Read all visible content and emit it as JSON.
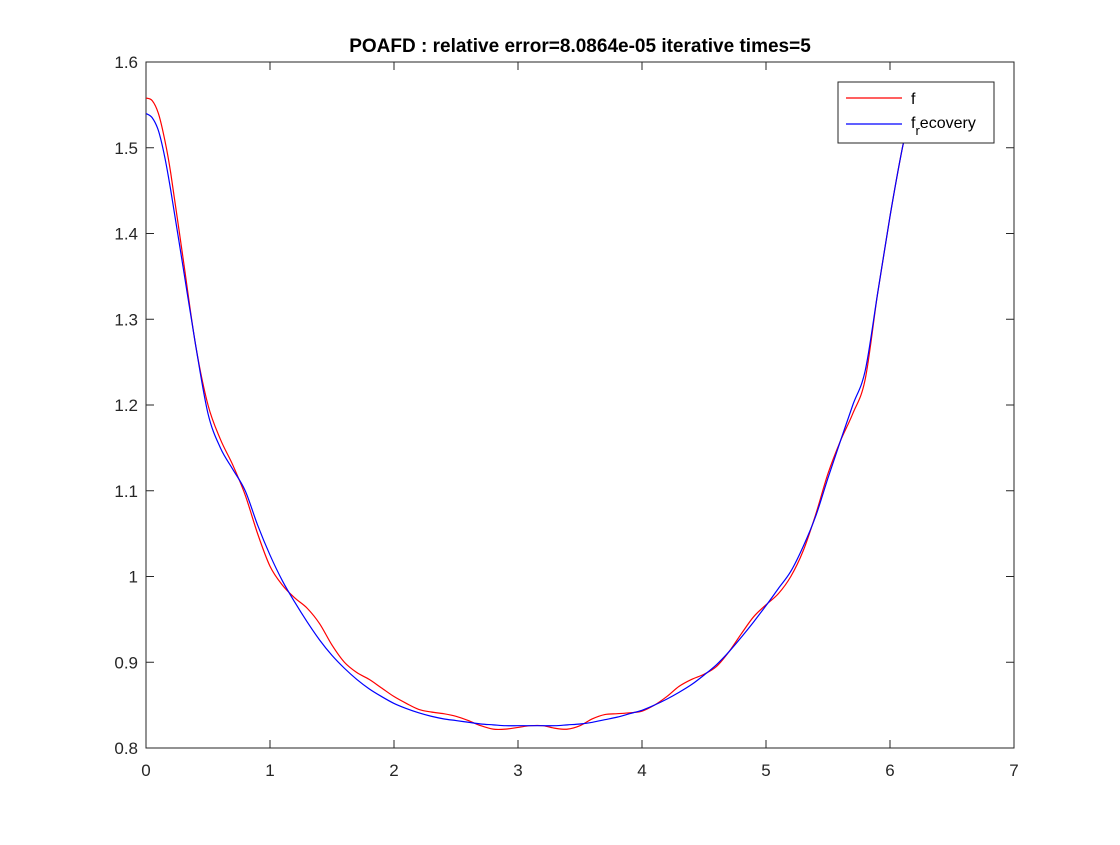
{
  "chart_data": {
    "type": "line",
    "title": "POAFD : relative error=8.0864e-05  iterative times=5",
    "xlabel": "",
    "ylabel": "",
    "xlim": [
      0,
      7
    ],
    "ylim": [
      0.8,
      1.6
    ],
    "xticks": [
      0,
      1,
      2,
      3,
      4,
      5,
      6,
      7
    ],
    "yticks": [
      0.8,
      0.9,
      1.0,
      1.1,
      1.2,
      1.3,
      1.4,
      1.5,
      1.6
    ],
    "xtick_labels": [
      "0",
      "1",
      "2",
      "3",
      "4",
      "5",
      "6",
      "7"
    ],
    "ytick_labels": [
      "0.8",
      "0.9",
      "1",
      "1.1",
      "1.2",
      "1.3",
      "1.4",
      "1.5",
      "1.6"
    ],
    "grid": false,
    "legend_position": "top-right",
    "series": [
      {
        "name": "f",
        "color": "#ff0000",
        "x": [
          0,
          0.05,
          0.1,
          0.15,
          0.2,
          0.3,
          0.4,
          0.5,
          0.6,
          0.7,
          0.8,
          0.9,
          1.0,
          1.1,
          1.2,
          1.3,
          1.4,
          1.5,
          1.6,
          1.7,
          1.8,
          1.9,
          2.0,
          2.1,
          2.2,
          2.3,
          2.4,
          2.5,
          2.6,
          2.7,
          2.8,
          2.9,
          3.0,
          3.1,
          3.2,
          3.3,
          3.4,
          3.5,
          3.6,
          3.7,
          3.8,
          3.9,
          4.0,
          4.1,
          4.2,
          4.3,
          4.4,
          4.5,
          4.6,
          4.7,
          4.8,
          4.9,
          5.0,
          5.1,
          5.2,
          5.3,
          5.4,
          5.5,
          5.6,
          5.7,
          5.8,
          5.9,
          6.0,
          6.1,
          6.15
        ],
        "values": [
          1.558,
          1.555,
          1.54,
          1.51,
          1.47,
          1.37,
          1.27,
          1.2,
          1.16,
          1.13,
          1.095,
          1.05,
          1.012,
          0.99,
          0.975,
          0.963,
          0.945,
          0.92,
          0.9,
          0.888,
          0.88,
          0.87,
          0.86,
          0.852,
          0.845,
          0.842,
          0.84,
          0.837,
          0.832,
          0.826,
          0.822,
          0.822,
          0.824,
          0.826,
          0.826,
          0.823,
          0.822,
          0.826,
          0.834,
          0.839,
          0.84,
          0.841,
          0.843,
          0.85,
          0.86,
          0.872,
          0.88,
          0.886,
          0.895,
          0.912,
          0.933,
          0.953,
          0.967,
          0.98,
          1.0,
          1.03,
          1.072,
          1.12,
          1.158,
          1.19,
          1.23,
          1.33,
          1.42,
          1.5,
          1.53
        ]
      },
      {
        "name": "f_recovery",
        "color": "#0000ff",
        "x": [
          0,
          0.05,
          0.1,
          0.15,
          0.2,
          0.3,
          0.4,
          0.5,
          0.6,
          0.7,
          0.8,
          0.9,
          1.0,
          1.1,
          1.2,
          1.3,
          1.4,
          1.5,
          1.6,
          1.7,
          1.8,
          1.9,
          2.0,
          2.1,
          2.2,
          2.3,
          2.4,
          2.5,
          2.6,
          2.7,
          2.8,
          2.9,
          3.0,
          3.1,
          3.2,
          3.3,
          3.4,
          3.5,
          3.6,
          3.7,
          3.8,
          3.9,
          4.0,
          4.1,
          4.2,
          4.3,
          4.4,
          4.5,
          4.6,
          4.7,
          4.8,
          4.9,
          5.0,
          5.1,
          5.2,
          5.3,
          5.4,
          5.5,
          5.6,
          5.7,
          5.8,
          5.9,
          6.0,
          6.1,
          6.15
        ],
        "values": [
          1.54,
          1.535,
          1.52,
          1.49,
          1.45,
          1.36,
          1.27,
          1.19,
          1.15,
          1.125,
          1.1,
          1.06,
          1.025,
          0.995,
          0.97,
          0.947,
          0.926,
          0.908,
          0.893,
          0.88,
          0.869,
          0.86,
          0.852,
          0.846,
          0.841,
          0.837,
          0.834,
          0.832,
          0.83,
          0.828,
          0.827,
          0.826,
          0.826,
          0.826,
          0.826,
          0.826,
          0.827,
          0.828,
          0.83,
          0.833,
          0.836,
          0.84,
          0.844,
          0.85,
          0.857,
          0.865,
          0.874,
          0.885,
          0.897,
          0.912,
          0.929,
          0.947,
          0.966,
          0.986,
          1.006,
          1.035,
          1.07,
          1.115,
          1.158,
          1.2,
          1.24,
          1.33,
          1.42,
          1.5,
          1.53
        ]
      }
    ],
    "legend": {
      "entries": [
        {
          "label": "f",
          "color": "#ff0000"
        },
        {
          "label_main": "f",
          "label_sub": "r",
          "label_rest": "ecovery",
          "color": "#0000ff"
        }
      ]
    }
  }
}
